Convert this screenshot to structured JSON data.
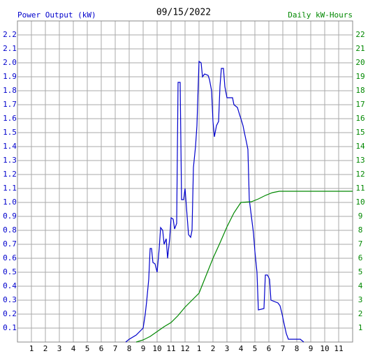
{
  "chart_data": {
    "type": "line",
    "title": "09/15/2022",
    "y_label": "Power Output (kW)",
    "y2_label": "Daily kW-Hours",
    "grid": true,
    "xlim": [
      0,
      24
    ],
    "xticks": [
      1,
      2,
      3,
      4,
      5,
      6,
      7,
      8,
      9,
      10,
      11,
      12,
      {
        "value": 13,
        "label": "1"
      },
      {
        "value": 14,
        "label": "2"
      },
      {
        "value": 15,
        "label": "3"
      },
      {
        "value": 16,
        "label": "4"
      },
      {
        "value": 17,
        "label": "5"
      },
      {
        "value": 18,
        "label": "6"
      },
      {
        "value": 19,
        "label": "7"
      },
      {
        "value": 20,
        "label": "8"
      },
      {
        "value": 21,
        "label": "9"
      },
      {
        "value": 22,
        "label": "10"
      },
      {
        "value": 23,
        "label": "11"
      }
    ],
    "ylim": [
      0,
      2.3
    ],
    "yticks": [
      0.1,
      0.2,
      0.3,
      0.4,
      0.5,
      0.6,
      0.7,
      0.8,
      0.9,
      {
        "value": 1,
        "label": "1.0"
      },
      1.1,
      1.2,
      1.3,
      1.4,
      1.5,
      1.6,
      1.7,
      1.8,
      1.9,
      {
        "value": 2,
        "label": "2.0"
      },
      2.1,
      2.2
    ],
    "y2lim": [
      0,
      23
    ],
    "y2ticks": [
      1,
      2,
      3,
      4,
      5,
      6,
      7,
      8,
      9,
      10,
      11,
      12,
      13,
      14,
      15,
      16,
      17,
      18,
      19,
      20,
      21,
      22
    ],
    "y_color": "#0000cc",
    "y2_color": "#008800",
    "series": [
      {
        "color": "#0000cc",
        "axis": "y",
        "x": [
          7.75,
          8.0,
          8.5,
          9.0,
          9.15,
          9.25,
          9.4,
          9.5,
          9.6,
          9.7,
          9.85,
          10.0,
          10.15,
          10.25,
          10.4,
          10.5,
          10.65,
          10.75,
          10.9,
          11.0,
          11.15,
          11.25,
          11.4,
          11.5,
          11.65,
          11.75,
          11.9,
          12.0,
          12.15,
          12.25,
          12.4,
          12.5,
          12.6,
          12.75,
          12.85,
          13.0,
          13.15,
          13.25,
          13.4,
          13.65,
          13.75,
          13.9,
          14.0,
          14.1,
          14.25,
          14.4,
          14.5,
          14.6,
          14.75,
          14.85,
          15.0,
          15.4,
          15.5,
          15.75,
          15.9,
          16.0,
          16.15,
          16.25,
          16.4,
          16.5,
          16.6,
          16.75,
          16.9,
          17.0,
          17.15,
          17.25,
          17.65,
          17.75,
          17.9,
          18.05,
          18.15,
          18.65,
          18.8,
          18.95,
          19.05,
          19.25,
          19.4,
          20.25,
          20.5
        ],
        "values": [
          0,
          0.02,
          0.05,
          0.1,
          0.2,
          0.29,
          0.45,
          0.67,
          0.67,
          0.57,
          0.56,
          0.5,
          0.67,
          0.82,
          0.8,
          0.7,
          0.74,
          0.6,
          0.74,
          0.89,
          0.88,
          0.81,
          0.85,
          1.86,
          1.86,
          1.02,
          1.02,
          1.1,
          0.9,
          0.77,
          0.75,
          0.8,
          1.25,
          1.4,
          1.55,
          2.01,
          2.0,
          1.9,
          1.92,
          1.91,
          1.88,
          1.8,
          1.58,
          1.47,
          1.55,
          1.58,
          1.83,
          1.96,
          1.96,
          1.83,
          1.75,
          1.75,
          1.7,
          1.68,
          1.63,
          1.6,
          1.55,
          1.5,
          1.43,
          1.38,
          1.02,
          0.9,
          0.78,
          0.65,
          0.5,
          0.23,
          0.24,
          0.48,
          0.48,
          0.45,
          0.3,
          0.28,
          0.26,
          0.2,
          0.15,
          0.06,
          0.02,
          0.02,
          0
        ]
      },
      {
        "color": "#008800",
        "axis": "y2",
        "x": [
          8.5,
          9.0,
          9.5,
          10.0,
          10.5,
          11.0,
          11.5,
          12.0,
          12.5,
          13.0,
          13.5,
          14.0,
          14.5,
          15.0,
          15.5,
          16.0,
          16.75,
          17.25,
          17.75,
          18.25,
          18.75,
          19.25,
          24
        ],
        "values": [
          0,
          0.15,
          0.4,
          0.75,
          1.1,
          1.4,
          1.9,
          2.5,
          3.0,
          3.5,
          4.75,
          6.0,
          7.1,
          8.25,
          9.25,
          10.0,
          10.05,
          10.25,
          10.5,
          10.7,
          10.8,
          10.8,
          10.8
        ]
      }
    ]
  }
}
